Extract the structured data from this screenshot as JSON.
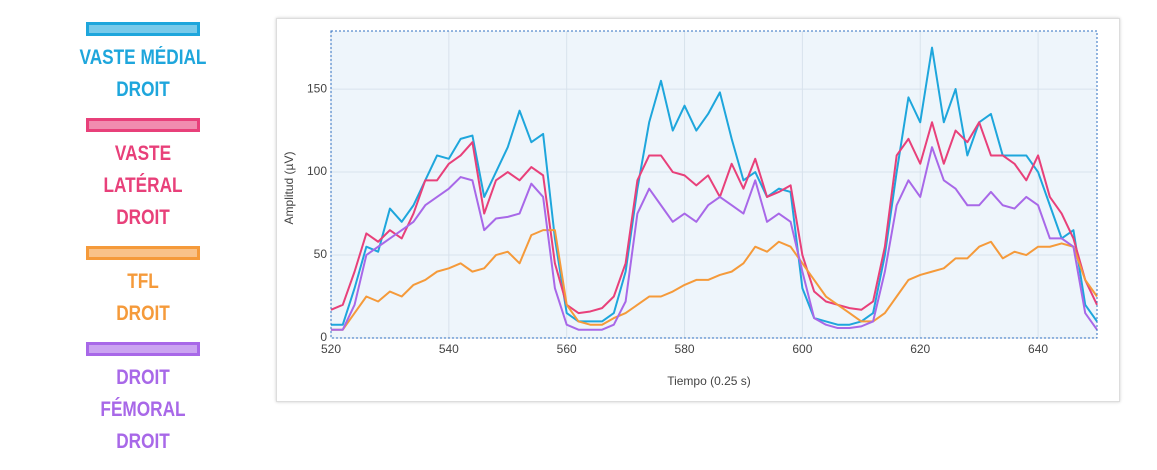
{
  "chart_data": {
    "type": "line",
    "x_label": "Tiempo (0.25 s)",
    "y_label": "Amplitud (µV)",
    "x": [
      520,
      522,
      524,
      526,
      528,
      530,
      532,
      534,
      536,
      538,
      540,
      542,
      544,
      546,
      548,
      550,
      552,
      554,
      556,
      558,
      560,
      562,
      564,
      566,
      568,
      570,
      572,
      574,
      576,
      578,
      580,
      582,
      584,
      586,
      588,
      590,
      592,
      594,
      596,
      598,
      600,
      602,
      604,
      606,
      608,
      610,
      612,
      614,
      616,
      618,
      620,
      622,
      624,
      626,
      628,
      630,
      632,
      634,
      636,
      638,
      640,
      642,
      644,
      646,
      648,
      650
    ],
    "xlim": [
      520,
      650
    ],
    "xticks": [
      520,
      540,
      560,
      580,
      600,
      620,
      640
    ],
    "ylim": [
      0,
      185
    ],
    "yticks": [
      0,
      50,
      100,
      150
    ],
    "series": [
      {
        "name": "VASTE MÉDIAL\nDROIT",
        "color": "#1ea6dc",
        "values": [
          8,
          8,
          30,
          55,
          52,
          78,
          70,
          80,
          95,
          110,
          108,
          120,
          122,
          85,
          100,
          115,
          137,
          118,
          123,
          60,
          15,
          10,
          10,
          10,
          15,
          40,
          90,
          130,
          155,
          125,
          140,
          125,
          135,
          148,
          120,
          95,
          100,
          85,
          90,
          88,
          30,
          12,
          10,
          8,
          8,
          10,
          15,
          50,
          100,
          145,
          130,
          175,
          130,
          150,
          110,
          130,
          135,
          110,
          110,
          110,
          100,
          80,
          60,
          65,
          20,
          10
        ]
      },
      {
        "name": "VASTE LATÉRAL\nDROIT",
        "color": "#e8407a",
        "values": [
          17,
          20,
          40,
          63,
          58,
          65,
          60,
          75,
          95,
          95,
          105,
          110,
          118,
          75,
          95,
          100,
          95,
          103,
          98,
          45,
          20,
          15,
          16,
          18,
          25,
          45,
          95,
          110,
          110,
          100,
          98,
          92,
          98,
          85,
          105,
          90,
          108,
          85,
          88,
          92,
          50,
          28,
          22,
          20,
          18,
          17,
          22,
          55,
          110,
          120,
          105,
          130,
          105,
          125,
          118,
          130,
          110,
          110,
          105,
          95,
          110,
          85,
          75,
          60,
          35,
          20
        ]
      },
      {
        "name": "TFL\nDROIT",
        "color": "#f59a3a",
        "values": [
          5,
          5,
          15,
          25,
          22,
          28,
          25,
          32,
          35,
          40,
          42,
          45,
          40,
          42,
          50,
          52,
          45,
          62,
          65,
          65,
          20,
          10,
          8,
          8,
          12,
          15,
          20,
          25,
          25,
          28,
          32,
          35,
          35,
          38,
          40,
          45,
          55,
          52,
          58,
          55,
          45,
          35,
          25,
          20,
          15,
          10,
          10,
          15,
          25,
          35,
          38,
          40,
          42,
          48,
          48,
          55,
          58,
          48,
          52,
          50,
          55,
          55,
          57,
          55,
          35,
          25
        ]
      },
      {
        "name": "DROIT FÉMORAL\nDROIT",
        "color": "#a868e8",
        "values": [
          5,
          5,
          20,
          50,
          55,
          60,
          65,
          70,
          80,
          85,
          90,
          97,
          95,
          65,
          72,
          73,
          75,
          93,
          85,
          30,
          8,
          5,
          5,
          5,
          8,
          22,
          75,
          90,
          80,
          70,
          75,
          70,
          80,
          85,
          80,
          75,
          95,
          70,
          75,
          70,
          40,
          12,
          8,
          6,
          6,
          7,
          10,
          40,
          80,
          95,
          85,
          115,
          95,
          90,
          80,
          80,
          88,
          80,
          78,
          85,
          80,
          60,
          60,
          55,
          15,
          5
        ]
      }
    ]
  }
}
